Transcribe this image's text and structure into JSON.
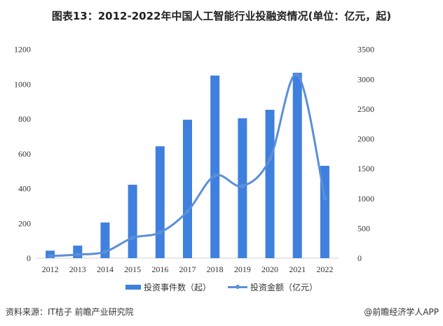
{
  "chart_data": {
    "type": "bar",
    "title": "图表13：2012-2022年中国人工智能行业投融资情况(单位：亿元，起)",
    "categories": [
      "2012",
      "2013",
      "2014",
      "2015",
      "2016",
      "2017",
      "2018",
      "2019",
      "2020",
      "2021",
      "2022"
    ],
    "series": [
      {
        "name": "投资事件数（起）",
        "type": "bar",
        "axis": "left",
        "color": "#3f80de",
        "values": [
          43,
          72,
          205,
          422,
          643,
          796,
          1050,
          804,
          853,
          1066,
          531
        ]
      },
      {
        "name": "投资金额（亿元）",
        "type": "line",
        "axis": "right",
        "color": "#5b8fd8",
        "smooth": true,
        "values": [
          35,
          59,
          106,
          340,
          430,
          782,
          1384,
          1208,
          1662,
          3078,
          1005
        ]
      }
    ],
    "y_left": {
      "lim": [
        0,
        1200
      ],
      "ticks": [
        0,
        200,
        400,
        600,
        800,
        1000,
        1200
      ]
    },
    "y_right": {
      "lim": [
        0,
        3500
      ],
      "ticks": [
        0,
        500,
        1000,
        1500,
        2000,
        2500,
        3000,
        3500
      ]
    },
    "grid": false,
    "legend": "bottom"
  },
  "footer": {
    "source": "资料来源：IT桔子 前瞻产业研究院",
    "brand": "@前瞻经济学人APP"
  }
}
